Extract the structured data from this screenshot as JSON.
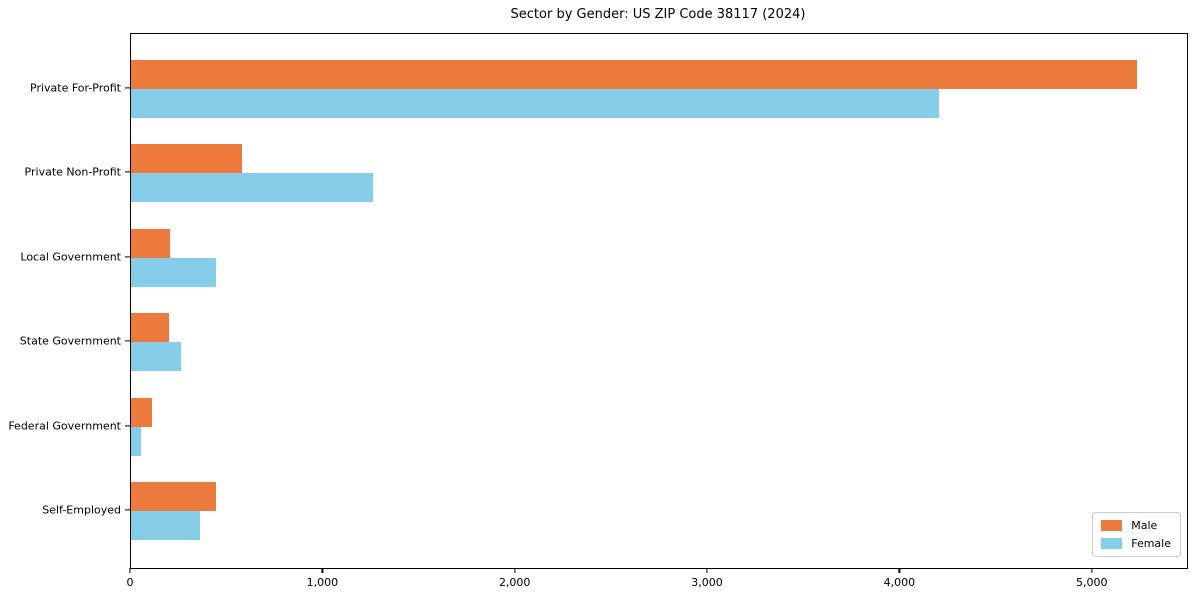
{
  "chart_data": {
    "type": "bar",
    "orientation": "horizontal",
    "title": "Sector by Gender: US ZIP Code 38117 (2024)",
    "categories": [
      "Private For-Profit",
      "Private Non-Profit",
      "Local Government",
      "State Government",
      "Federal Government",
      "Self-Employed"
    ],
    "series": [
      {
        "name": "Male",
        "color": "#EC7A3C",
        "values": [
          5230,
          575,
          205,
          200,
          110,
          440
        ]
      },
      {
        "name": "Female",
        "color": "#85CDE8",
        "values": [
          4200,
          1260,
          440,
          260,
          50,
          360
        ]
      }
    ],
    "xlabel": "",
    "ylabel": "",
    "xlim": [
      0,
      5490
    ],
    "xticks": {
      "values": [
        0,
        1000,
        2000,
        3000,
        4000,
        5000
      ],
      "labels": [
        "0",
        "1,000",
        "2,000",
        "3,000",
        "4,000",
        "5,000"
      ]
    },
    "grid": false,
    "legend": {
      "position": "lower right",
      "entries": [
        "Male",
        "Female"
      ]
    }
  }
}
